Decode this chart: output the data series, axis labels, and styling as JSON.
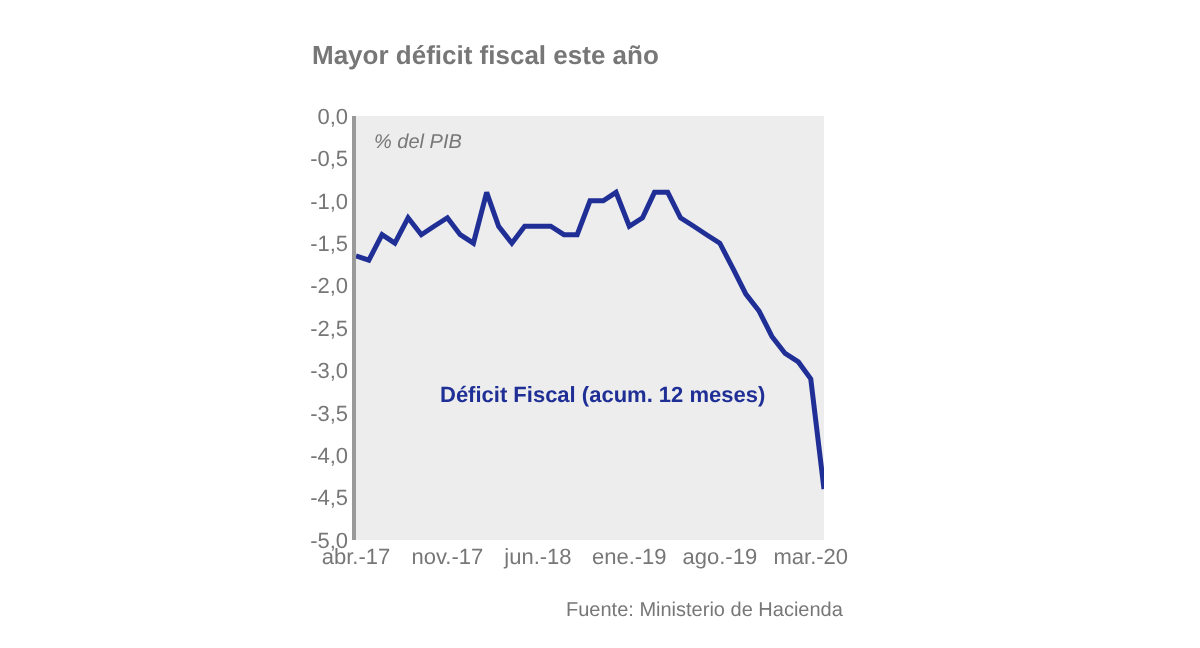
{
  "chart_data": {
    "type": "line",
    "title": "Mayor déficit fiscal este año",
    "ylabel": "% del PIB",
    "x": [
      "2017-04",
      "2017-05",
      "2017-06",
      "2017-07",
      "2017-08",
      "2017-09",
      "2017-10",
      "2017-11",
      "2017-12",
      "2018-01",
      "2018-02",
      "2018-03",
      "2018-04",
      "2018-05",
      "2018-06",
      "2018-07",
      "2018-08",
      "2018-09",
      "2018-10",
      "2018-11",
      "2018-12",
      "2019-01",
      "2019-02",
      "2019-03",
      "2019-04",
      "2019-05",
      "2019-06",
      "2019-07",
      "2019-08",
      "2019-09",
      "2019-10",
      "2019-11",
      "2019-12",
      "2020-01",
      "2020-02",
      "2020-03",
      "2020-04"
    ],
    "series": [
      {
        "name": "Déficit Fiscal (acum. 12 meses)",
        "color": "#1f2f96",
        "values": [
          -1.65,
          -1.7,
          -1.4,
          -1.5,
          -1.2,
          -1.4,
          -1.3,
          -1.2,
          -1.4,
          -1.5,
          -0.9,
          -1.3,
          -1.5,
          -1.3,
          -1.3,
          -1.3,
          -1.4,
          -1.4,
          -1.0,
          -1.0,
          -0.9,
          -1.3,
          -1.2,
          -0.9,
          -0.9,
          -1.2,
          -1.3,
          -1.4,
          -1.5,
          -1.8,
          -2.1,
          -2.3,
          -2.6,
          -2.8,
          -2.9,
          -3.1,
          -4.4
        ]
      }
    ],
    "xlim": [
      "2017-04",
      "2020-04"
    ],
    "xticks": [
      {
        "value": "2017-04",
        "label": "abr.-17"
      },
      {
        "value": "2017-11",
        "label": "nov.-17"
      },
      {
        "value": "2018-06",
        "label": "jun.-18"
      },
      {
        "value": "2019-01",
        "label": "ene.-19"
      },
      {
        "value": "2019-08",
        "label": "ago.-19"
      },
      {
        "value": "2020-03",
        "label": "mar.-20"
      }
    ],
    "ylim": [
      -5,
      0
    ],
    "yticks": [
      {
        "value": 0,
        "label": "0,0"
      },
      {
        "value": -0.5,
        "label": "-0,5"
      },
      {
        "value": -1,
        "label": "-1,0"
      },
      {
        "value": -1.5,
        "label": "-1,5"
      },
      {
        "value": -2,
        "label": "-2,0"
      },
      {
        "value": -2.5,
        "label": "-2,5"
      },
      {
        "value": -3,
        "label": "-3,0"
      },
      {
        "value": -3.5,
        "label": "-3,5"
      },
      {
        "value": -4,
        "label": "-4,0"
      },
      {
        "value": -4.5,
        "label": "-4,5"
      },
      {
        "value": -5,
        "label": "-5,0"
      }
    ],
    "grid": false,
    "legend": false,
    "marker": "none",
    "line_style": "solid",
    "annotations": [
      "Fuente: Ministerio de Hacienda"
    ]
  }
}
